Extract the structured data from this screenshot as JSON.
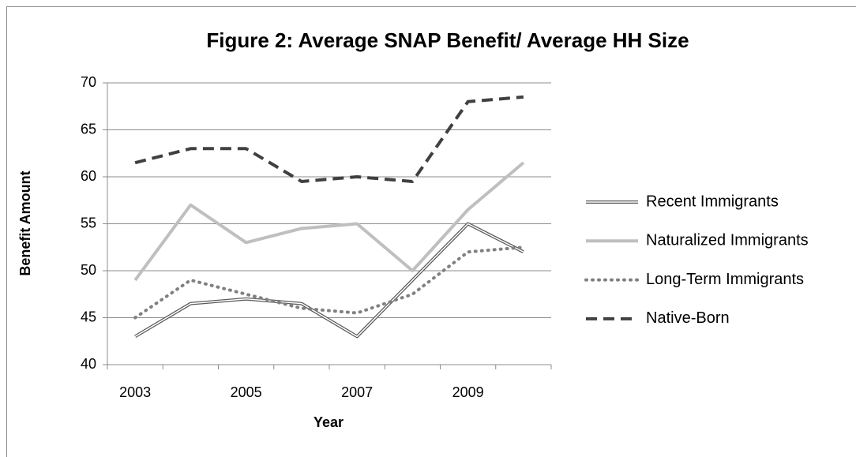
{
  "chart_data": {
    "type": "line",
    "title": "Figure 2: Average SNAP Benefit/ Average HH Size",
    "x_label": "Year",
    "y_label": "Benefit Amount",
    "categories": [
      "2003",
      null,
      "2005",
      null,
      "2007",
      null,
      "2009",
      null
    ],
    "ylim": [
      40,
      70
    ],
    "yticks": [
      40,
      45,
      50,
      55,
      60,
      65,
      70
    ],
    "grid": true,
    "legend": "right",
    "series": [
      {
        "name": "Recent Immigrants",
        "color": "#595959",
        "line_style": "double",
        "values": [
          43,
          46.5,
          47,
          46.5,
          43,
          49,
          55,
          52
        ]
      },
      {
        "name": "Naturalized Immigrants",
        "color": "#bfbfbf",
        "line_style": "solid",
        "values": [
          49,
          57,
          53,
          54.5,
          55,
          50,
          56.5,
          61.5
        ]
      },
      {
        "name": "Long-Term Immigrants",
        "color": "#808080",
        "line_style": "dotted",
        "values": [
          45,
          49,
          47.5,
          46,
          45.5,
          47.5,
          52,
          52.5
        ]
      },
      {
        "name": "Native-Born",
        "color": "#404040",
        "line_style": "dashed",
        "values": [
          61.5,
          63,
          63,
          59.5,
          60,
          59.5,
          68,
          68.5
        ]
      }
    ]
  }
}
